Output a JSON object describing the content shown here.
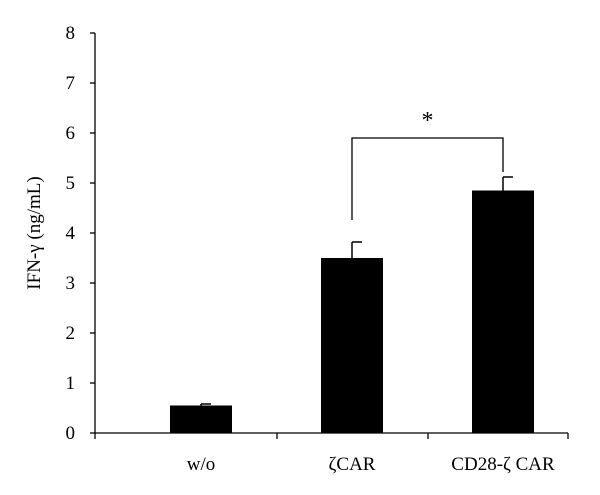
{
  "chart_data": {
    "type": "bar",
    "title": "",
    "xlabel": "",
    "ylabel": "IFN-γ (ng/mL)",
    "ylim": [
      0,
      8
    ],
    "yticks": [
      "0",
      "1",
      "2",
      "3",
      "4",
      "5",
      "6",
      "7",
      "8"
    ],
    "grid": false,
    "categories": [
      "w/o",
      "ζCAR",
      "CD28-ζ CAR"
    ],
    "values": [
      0.55,
      3.5,
      4.85
    ],
    "error": [
      0.03,
      0.32,
      0.27
    ],
    "bar_color": "#000000",
    "significance": {
      "from": 1,
      "to": 2,
      "label": "*",
      "bracket_y": 5.9
    }
  }
}
